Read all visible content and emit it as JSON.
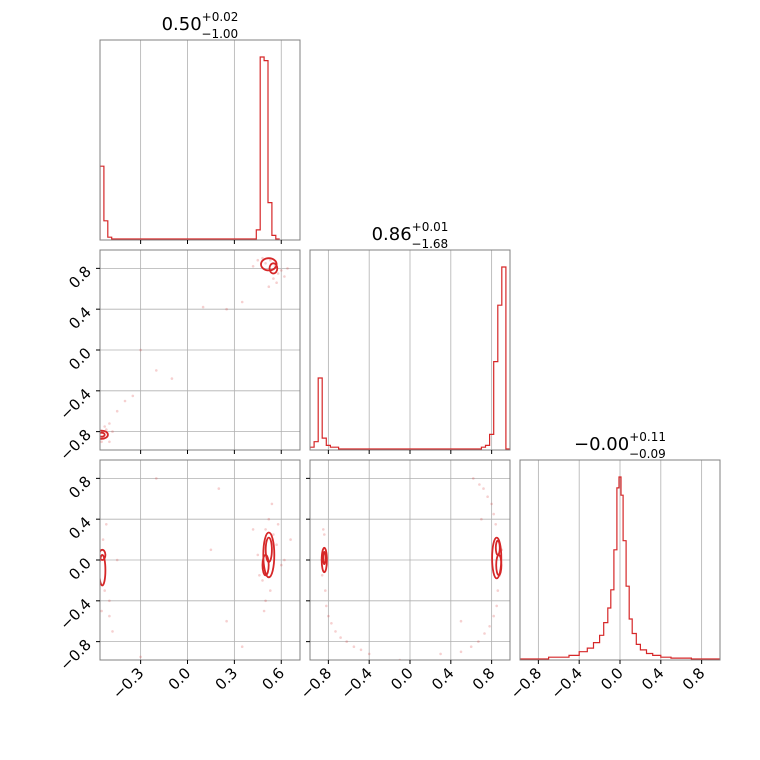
{
  "chart_data": {
    "type": "corner",
    "line_color": "#d62728",
    "point_color": "#d62728",
    "spine_color": "#808080",
    "grid_color": "#b0b0b0",
    "titles": [
      {
        "value": "0.50",
        "plus": "+0.02",
        "minus": "−1.00"
      },
      {
        "value": "0.86",
        "plus": "+0.01",
        "minus": "−1.68"
      },
      {
        "value": "−0.00",
        "plus": "+0.11",
        "minus": "−0.09"
      }
    ],
    "params": [
      {
        "range": [
          -0.56,
          0.72
        ],
        "ticks": [
          -0.3,
          0.0,
          0.3,
          0.6
        ],
        "tick_labels": [
          "−0.3",
          "0.0",
          "0.3",
          "0.6"
        ]
      },
      {
        "range": [
          -0.98,
          0.98
        ],
        "ticks": [
          -0.8,
          -0.4,
          0.0,
          0.4,
          0.8
        ],
        "tick_labels": [
          "−0.8",
          "−0.4",
          "0.0",
          "0.4",
          "0.8"
        ]
      },
      {
        "range": [
          -0.98,
          0.98
        ],
        "ticks": [
          -0.8,
          -0.4,
          0.0,
          0.4,
          0.8
        ],
        "tick_labels": [
          "−0.8",
          "−0.4",
          "0.0",
          "0.4",
          "0.8"
        ]
      }
    ],
    "histograms": [
      {
        "param": 0,
        "bins": [
          -0.56,
          -0.535,
          -0.51,
          -0.485,
          -0.46,
          -0.435,
          -0.41,
          0.44,
          0.465,
          0.49,
          0.515,
          0.54,
          0.565,
          0.59
        ],
        "counts": [
          0.4,
          0.1,
          0.01,
          0.0,
          0.0,
          0.0,
          0.0,
          0.05,
          1.0,
          0.98,
          0.2,
          0.02,
          0.0
        ]
      },
      {
        "param": 1,
        "bins": [
          -0.98,
          -0.94,
          -0.9,
          -0.86,
          -0.82,
          -0.78,
          -0.74,
          -0.7,
          0.7,
          0.74,
          0.78,
          0.82,
          0.86,
          0.9,
          0.94,
          0.98
        ],
        "counts": [
          0.01,
          0.04,
          0.39,
          0.06,
          0.02,
          0.01,
          0.01,
          0.0,
          0.01,
          0.02,
          0.08,
          0.48,
          0.79,
          1.0,
          0.0
        ]
      },
      {
        "param": 2,
        "bins": [
          -0.98,
          -0.7,
          -0.5,
          -0.4,
          -0.32,
          -0.26,
          -0.2,
          -0.16,
          -0.12,
          -0.09,
          -0.06,
          -0.03,
          -0.01,
          0.01,
          0.03,
          0.06,
          0.09,
          0.12,
          0.16,
          0.2,
          0.26,
          0.32,
          0.4,
          0.5,
          0.7,
          0.98
        ],
        "counts": [
          0.0,
          0.01,
          0.02,
          0.04,
          0.06,
          0.09,
          0.13,
          0.2,
          0.28,
          0.38,
          0.6,
          0.94,
          1.0,
          0.9,
          0.65,
          0.4,
          0.22,
          0.14,
          0.08,
          0.05,
          0.03,
          0.02,
          0.01,
          0.005,
          0.0
        ]
      }
    ],
    "scatter_panels": [
      {
        "x_param": 0,
        "y_param": 1,
        "contours": [
          {
            "center": [
              0.52,
              0.84
            ],
            "radii": [
              0.05,
              0.06
            ]
          },
          {
            "center": [
              0.55,
              0.8
            ],
            "radii": [
              0.025,
              0.05
            ]
          },
          {
            "center": [
              -0.55,
              -0.83
            ],
            "radii": [
              0.04,
              0.04
            ]
          },
          {
            "center": [
              -0.55,
              -0.83
            ],
            "radii": [
              0.02,
              0.02
            ]
          }
        ],
        "points": [
          [
            0.48,
            0.9
          ],
          [
            0.5,
            0.85
          ],
          [
            0.53,
            0.88
          ],
          [
            0.56,
            0.82
          ],
          [
            0.58,
            0.75
          ],
          [
            0.55,
            0.7
          ],
          [
            0.6,
            0.78
          ],
          [
            0.45,
            0.88
          ],
          [
            0.62,
            0.72
          ],
          [
            0.52,
            0.62
          ],
          [
            0.57,
            0.66
          ],
          [
            0.64,
            0.8
          ],
          [
            0.42,
            0.82
          ],
          [
            0.35,
            0.47
          ],
          [
            0.25,
            0.4
          ],
          [
            0.1,
            0.42
          ],
          [
            -0.3,
            0.0
          ],
          [
            -0.2,
            -0.2
          ],
          [
            -0.4,
            -0.5
          ],
          [
            -0.45,
            -0.6
          ],
          [
            -0.5,
            -0.72
          ],
          [
            -0.52,
            -0.78
          ],
          [
            -0.54,
            -0.85
          ],
          [
            -0.5,
            -0.9
          ],
          [
            -0.53,
            -0.75
          ],
          [
            -0.48,
            -0.8
          ],
          [
            -0.55,
            -0.9
          ],
          [
            -0.35,
            -0.45
          ],
          [
            -0.1,
            -0.28
          ]
        ]
      },
      {
        "x_param": 0,
        "y_param": 2,
        "contours": [
          {
            "center": [
              0.52,
              0.05
            ],
            "radii": [
              0.035,
              0.22
            ]
          },
          {
            "center": [
              0.52,
              0.1
            ],
            "radii": [
              0.02,
              0.12
            ]
          },
          {
            "center": [
              0.5,
              -0.05
            ],
            "radii": [
              0.02,
              0.1
            ]
          },
          {
            "center": [
              -0.545,
              -0.1
            ],
            "radii": [
              0.02,
              0.15
            ]
          },
          {
            "center": [
              -0.545,
              0.05
            ],
            "radii": [
              0.02,
              0.05
            ]
          }
        ],
        "points": [
          [
            0.5,
            0.3
          ],
          [
            0.55,
            0.25
          ],
          [
            0.48,
            -0.2
          ],
          [
            0.53,
            -0.3
          ],
          [
            0.57,
            0.15
          ],
          [
            0.45,
            0.05
          ],
          [
            0.6,
            -0.05
          ],
          [
            0.52,
            0.4
          ],
          [
            0.5,
            -0.4
          ],
          [
            0.58,
            0.35
          ],
          [
            0.46,
            -0.15
          ],
          [
            0.62,
            0.0
          ],
          [
            0.54,
            0.55
          ],
          [
            0.49,
            -0.5
          ],
          [
            0.66,
            0.2
          ],
          [
            0.42,
            0.3
          ],
          [
            -0.54,
            0.2
          ],
          [
            -0.53,
            -0.3
          ],
          [
            -0.5,
            -0.4
          ],
          [
            -0.52,
            0.35
          ],
          [
            -0.55,
            -0.5
          ],
          [
            -0.5,
            -0.55
          ],
          [
            -0.48,
            -0.7
          ],
          [
            -0.45,
            0.0
          ],
          [
            -0.2,
            0.8
          ],
          [
            0.15,
            0.1
          ],
          [
            0.25,
            -0.6
          ],
          [
            0.35,
            -0.85
          ],
          [
            -0.3,
            -0.95
          ],
          [
            0.2,
            0.7
          ]
        ]
      },
      {
        "x_param": 1,
        "y_param": 2,
        "contours": [
          {
            "center": [
              -0.84,
              0.0
            ],
            "radii": [
              0.025,
              0.12
            ]
          },
          {
            "center": [
              -0.84,
              0.02
            ],
            "radii": [
              0.012,
              0.06
            ]
          },
          {
            "center": [
              0.85,
              0.02
            ],
            "radii": [
              0.045,
              0.2
            ]
          },
          {
            "center": [
              0.87,
              -0.05
            ],
            "radii": [
              0.025,
              0.1
            ]
          },
          {
            "center": [
              0.86,
              0.12
            ],
            "radii": [
              0.02,
              0.07
            ]
          }
        ],
        "points": [
          [
            -0.83,
            -0.3
          ],
          [
            -0.82,
            -0.45
          ],
          [
            -0.8,
            -0.55
          ],
          [
            -0.77,
            -0.62
          ],
          [
            -0.73,
            -0.7
          ],
          [
            -0.68,
            -0.76
          ],
          [
            -0.62,
            -0.8
          ],
          [
            -0.55,
            -0.85
          ],
          [
            -0.48,
            -0.88
          ],
          [
            -0.4,
            -0.92
          ],
          [
            -0.84,
            0.25
          ],
          [
            -0.85,
            0.3
          ],
          [
            0.82,
            0.45
          ],
          [
            0.8,
            0.55
          ],
          [
            0.76,
            0.62
          ],
          [
            0.72,
            0.7
          ],
          [
            0.68,
            0.74
          ],
          [
            0.62,
            0.8
          ],
          [
            0.84,
            0.35
          ],
          [
            0.86,
            -0.3
          ],
          [
            0.85,
            -0.45
          ],
          [
            0.82,
            -0.55
          ],
          [
            0.78,
            -0.65
          ],
          [
            0.73,
            -0.72
          ],
          [
            0.67,
            -0.8
          ],
          [
            0.6,
            -0.85
          ],
          [
            0.5,
            -0.9
          ],
          [
            0.7,
            0.4
          ],
          [
            0.5,
            -0.6
          ],
          [
            0.3,
            -0.92
          ],
          [
            -0.1,
            -0.98
          ],
          [
            0.9,
            0.1
          ],
          [
            0.88,
            -0.15
          ],
          [
            -0.86,
            -0.15
          ]
        ]
      }
    ]
  }
}
